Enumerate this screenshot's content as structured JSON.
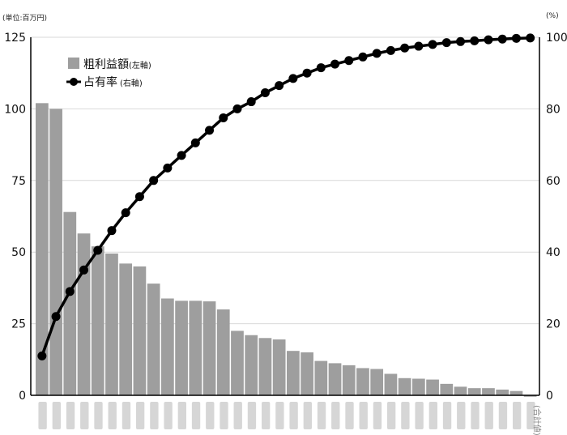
{
  "chart_data": {
    "type": "bar+line",
    "left_axis": {
      "unit": "(単位:百万円)",
      "ylim": [
        0,
        125
      ],
      "ticks": [
        0,
        25,
        50,
        75,
        100,
        125
      ]
    },
    "right_axis": {
      "unit": "(%)",
      "ylim": [
        0,
        100
      ],
      "ticks": [
        0,
        20,
        40,
        60,
        80,
        100
      ]
    },
    "grid": true,
    "legend": {
      "position": "top-left",
      "bar_label": "粗利益額",
      "bar_note": "(左軸)",
      "line_label": "占有率",
      "line_note": "(右軸)"
    },
    "last_category_label": "(合計値)",
    "bars": [
      102,
      100,
      64,
      56.5,
      52,
      49.5,
      46,
      45,
      39,
      33.8,
      33,
      33,
      32.8,
      30,
      22.5,
      21,
      20,
      19.5,
      15.5,
      15,
      12,
      11.2,
      10.5,
      9.5,
      9.2,
      7.5,
      6,
      5.8,
      5.5,
      4,
      3,
      2.5,
      2.5,
      2,
      1.5,
      -0.5
    ],
    "cumulative_pct": [
      11,
      22,
      29,
      35,
      40.5,
      46,
      51,
      55.5,
      60,
      63.5,
      67,
      70.5,
      74,
      77.5,
      80,
      82,
      84.5,
      86.5,
      88.5,
      90,
      91.5,
      92.5,
      93.5,
      94.5,
      95.5,
      96.3,
      97,
      97.5,
      98,
      98.5,
      98.8,
      99,
      99.3,
      99.5,
      99.7,
      99.8
    ],
    "colors": {
      "bar": "#9e9e9e",
      "line": "#000000",
      "grid": "#d9d9d9"
    }
  }
}
